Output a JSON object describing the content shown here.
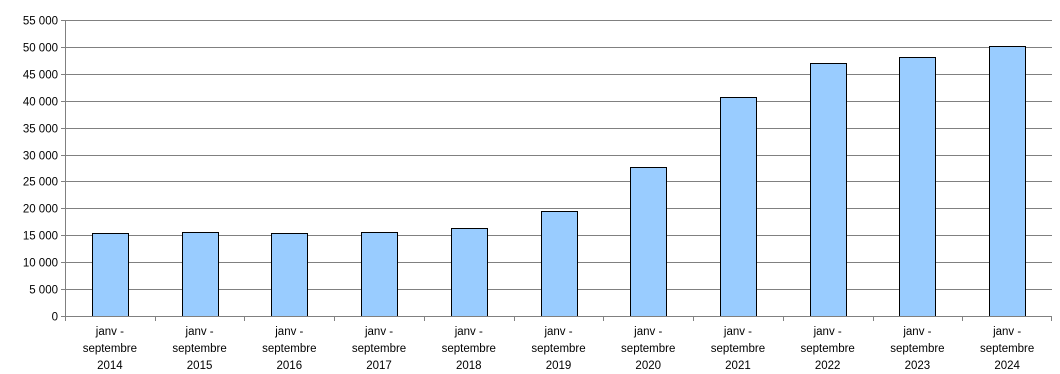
{
  "chart_data": {
    "type": "bar",
    "title": "",
    "xlabel": "",
    "ylabel": "",
    "categories": [
      [
        "janv -",
        "septembre",
        "2014"
      ],
      [
        "janv -",
        "septembre",
        "2015"
      ],
      [
        "janv -",
        "septembre",
        "2016"
      ],
      [
        "janv -",
        "septembre",
        "2017"
      ],
      [
        "janv -",
        "septembre",
        "2018"
      ],
      [
        "janv -",
        "septembre",
        "2019"
      ],
      [
        "janv -",
        "septembre",
        "2020"
      ],
      [
        "janv -",
        "septembre",
        "2021"
      ],
      [
        "janv -",
        "septembre",
        "2022"
      ],
      [
        "janv -",
        "septembre",
        "2023"
      ],
      [
        "janv -",
        "septembre",
        "2024"
      ]
    ],
    "values": [
      15400,
      15700,
      15500,
      15600,
      16400,
      19500,
      27700,
      40700,
      47000,
      48100,
      50200
    ],
    "ylim": [
      0,
      55000
    ],
    "y_ticks": [
      0,
      5000,
      10000,
      15000,
      20000,
      25000,
      30000,
      35000,
      40000,
      45000,
      50000,
      55000
    ],
    "y_tick_labels": [
      "0",
      "5 000",
      "10 000",
      "15 000",
      "20 000",
      "25 000",
      "30 000",
      "35 000",
      "40 000",
      "45 000",
      "50 000",
      "55 000"
    ],
    "grid": true,
    "legend": "none",
    "colors": {
      "bar_fill": "#99CCFF",
      "bar_stroke": "#000000",
      "grid": "#808080"
    }
  }
}
